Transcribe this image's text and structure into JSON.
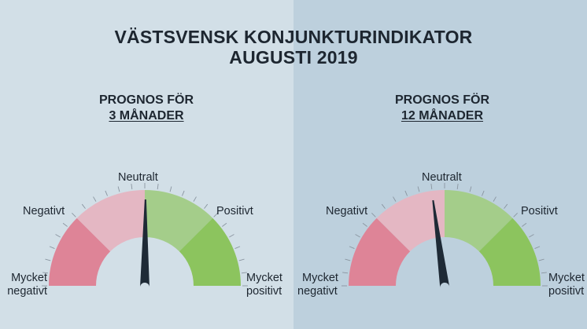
{
  "title": {
    "line1": "VÄSTSVENSK KONJUNKTURINDIKATOR",
    "line2": "AUGUSTI 2019"
  },
  "colors": {
    "mycket_negativt": "#de8497",
    "negativt": "#e4b7c3",
    "positivt": "#a4cd8a",
    "mycket_positivt": "#8cc45e",
    "needle": "#1e2a36",
    "bg_left": "#d2dfe7",
    "bg_right": "#bdd0dd"
  },
  "gauges": [
    {
      "heading_line1": "PROGNOS FÖR",
      "heading_line2": "3 MÅNADER",
      "labels": {
        "neutral": "Neutralt",
        "negative": "Negativt",
        "positive": "Positivt",
        "very_negative_1": "Mycket",
        "very_negative_2": "negativt",
        "very_positive_1": "Mycket",
        "very_positive_2": "positivt"
      },
      "needle_value": 0.005
    },
    {
      "heading_line1": "PROGNOS FÖR",
      "heading_line2": "12 MÅNADER",
      "labels": {
        "neutral": "Neutralt",
        "negative": "Negativt",
        "positive": "Positivt",
        "very_negative_1": "Mycket",
        "very_negative_2": "negativt",
        "very_positive_1": "Mycket",
        "very_positive_2": "positivt"
      },
      "needle_value": -0.085
    }
  ]
}
